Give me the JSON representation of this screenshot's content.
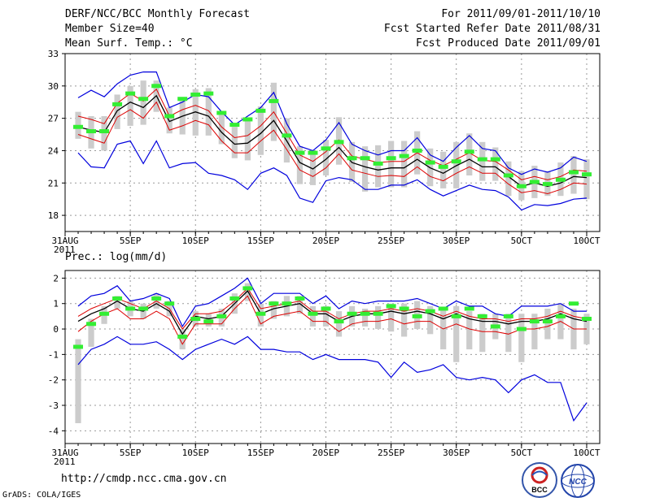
{
  "header": {
    "title": "DERF/NCC/BCC Monthly Forecast",
    "member_size": "Member Size=40",
    "variable": "Mean Surf. Temp.: °C",
    "period": "For 2011/09/01-2011/10/10",
    "started": "Fcst Started Refer Date 2011/08/31",
    "produced": "Fcst Produced Date 2011/09/01"
  },
  "footer": {
    "url": "http://cmdp.ncc.cma.gov.cn",
    "grads": "GrADS: COLA/IGES",
    "logo1_text": "BCC",
    "logo2_text": "NCC"
  },
  "colors": {
    "ensemble_mean": "#000000",
    "inner_band": "#dd0000",
    "outer_band": "#0000dd",
    "observed": "#33ee33",
    "spread_bar": "#cccccc",
    "grid": "#999999"
  },
  "chart_data": [
    {
      "type": "line",
      "title": "Mean Surf. Temp.: °C",
      "x_tick_labels": [
        "31AUG\n2011",
        "5SEP",
        "10SEP",
        "15SEP",
        "20SEP",
        "25SEP",
        "30SEP",
        "5OCT",
        "10OCT"
      ],
      "ylim": [
        16.5,
        33
      ],
      "yticks": [
        18,
        21,
        24,
        27,
        30,
        33
      ],
      "days": [
        1,
        2,
        3,
        4,
        5,
        6,
        7,
        8,
        9,
        10,
        11,
        12,
        13,
        14,
        15,
        16,
        17,
        18,
        19,
        20,
        21,
        22,
        23,
        24,
        25,
        26,
        27,
        28,
        29,
        30,
        31,
        32,
        33,
        34,
        35,
        36,
        37,
        38,
        39,
        40
      ],
      "series": [
        {
          "name": "ensemble mean",
          "values": [
            26.2,
            25.9,
            25.7,
            27.7,
            28.5,
            28.0,
            29.1,
            26.7,
            27.2,
            27.6,
            27.2,
            25.7,
            24.6,
            24.7,
            25.6,
            26.8,
            24.9,
            22.9,
            22.3,
            23.2,
            24.3,
            22.9,
            22.5,
            22.2,
            22.4,
            22.4,
            23.2,
            22.4,
            21.9,
            22.6,
            23.2,
            22.5,
            22.5,
            21.6,
            20.7,
            21.0,
            20.7,
            21.0,
            21.6,
            21.5
          ]
        },
        {
          "name": "upper inner",
          "values": [
            27.2,
            26.9,
            26.5,
            28.4,
            29.3,
            28.6,
            29.7,
            27.2,
            27.8,
            28.2,
            27.7,
            26.2,
            25.2,
            25.4,
            26.3,
            27.6,
            25.6,
            23.6,
            23.0,
            23.9,
            25.0,
            23.5,
            23.2,
            22.9,
            23.0,
            23.0,
            23.8,
            23.1,
            22.6,
            23.2,
            23.8,
            23.1,
            23.0,
            22.2,
            21.3,
            21.6,
            21.3,
            21.6,
            22.2,
            22.1
          ]
        },
        {
          "name": "lower inner",
          "values": [
            25.5,
            25.1,
            24.7,
            27.1,
            27.8,
            27.0,
            28.5,
            25.9,
            26.3,
            26.8,
            26.4,
            24.9,
            23.8,
            23.8,
            24.9,
            25.9,
            24.1,
            22.2,
            21.6,
            22.4,
            23.7,
            22.2,
            21.9,
            21.6,
            21.7,
            21.6,
            22.5,
            21.6,
            21.2,
            21.9,
            22.5,
            21.9,
            21.9,
            20.9,
            20.1,
            20.3,
            20.0,
            20.4,
            21.0,
            20.9
          ]
        },
        {
          "name": "upper outer",
          "values": [
            28.9,
            29.6,
            29.0,
            30.2,
            31.0,
            31.3,
            31.3,
            28.0,
            28.5,
            29.2,
            29.0,
            27.6,
            26.4,
            27.2,
            28.0,
            29.4,
            26.5,
            24.4,
            24.0,
            25.0,
            26.6,
            24.6,
            24.0,
            23.6,
            24.0,
            24.0,
            25.2,
            23.6,
            23.0,
            24.3,
            25.4,
            24.2,
            24.0,
            22.4,
            21.8,
            22.3,
            22.0,
            22.4,
            23.4,
            23.0
          ]
        },
        {
          "name": "lower outer",
          "values": [
            23.8,
            22.5,
            22.4,
            24.6,
            24.9,
            22.8,
            24.9,
            22.4,
            22.8,
            22.9,
            21.9,
            21.7,
            21.3,
            20.4,
            21.9,
            22.4,
            21.7,
            19.6,
            19.2,
            21.2,
            21.5,
            21.3,
            20.4,
            20.4,
            20.8,
            20.8,
            21.3,
            20.4,
            19.8,
            20.3,
            20.8,
            20.4,
            20.3,
            19.7,
            18.5,
            19.0,
            18.9,
            19.1,
            19.5,
            19.6
          ]
        },
        {
          "name": "observed",
          "values": [
            26.2,
            25.8,
            25.8,
            28.3,
            29.3,
            28.8,
            30.0,
            27.2,
            28.8,
            29.2,
            29.3,
            27.5,
            26.4,
            26.9,
            27.7,
            28.6,
            25.4,
            23.8,
            23.8,
            24.2,
            24.8,
            23.3,
            23.3,
            22.8,
            23.3,
            23.5,
            24.0,
            22.9,
            22.5,
            23.0,
            23.9,
            23.2,
            23.2,
            21.7,
            20.7,
            21.1,
            20.9,
            21.3,
            22.0,
            21.8
          ]
        },
        {
          "name": "spread bar max",
          "values": [
            27.6,
            27.2,
            27.2,
            29.2,
            30.0,
            30.5,
            30.5,
            28.0,
            28.6,
            29.7,
            29.8,
            27.3,
            26.2,
            27.0,
            28.1,
            30.3,
            27.0,
            24.4,
            23.9,
            25.0,
            27.1,
            24.8,
            24.4,
            24.5,
            24.9,
            24.9,
            25.8,
            24.2,
            23.9,
            24.8,
            25.6,
            24.8,
            24.3,
            23.0,
            22.1,
            22.6,
            22.1,
            22.9,
            23.5,
            23.2
          ]
        },
        {
          "name": "spread bar min",
          "values": [
            25.1,
            24.2,
            24.0,
            26.0,
            26.3,
            26.4,
            27.6,
            25.6,
            25.5,
            25.4,
            25.4,
            24.6,
            23.3,
            23.1,
            23.6,
            24.9,
            22.9,
            20.9,
            20.8,
            21.7,
            22.7,
            21.1,
            20.2,
            20.6,
            20.6,
            20.6,
            21.8,
            20.7,
            20.5,
            20.5,
            21.7,
            21.2,
            21.2,
            19.8,
            19.4,
            19.6,
            19.8,
            19.8,
            20.0,
            19.5
          ]
        }
      ]
    },
    {
      "type": "line",
      "title": "Prec.: log(mm/d)",
      "x_tick_labels": [
        "31AUG\n2011",
        "5SEP",
        "10SEP",
        "15SEP",
        "20SEP",
        "25SEP",
        "30SEP",
        "5OCT",
        "10OCT"
      ],
      "ylim": [
        -4.5,
        2.3
      ],
      "yticks": [
        -4,
        -3,
        -2,
        -1,
        0,
        1,
        2
      ],
      "days": [
        1,
        2,
        3,
        4,
        5,
        6,
        7,
        8,
        9,
        10,
        11,
        12,
        13,
        14,
        15,
        16,
        17,
        18,
        19,
        20,
        21,
        22,
        23,
        24,
        25,
        26,
        27,
        28,
        29,
        30,
        31,
        32,
        33,
        34,
        35,
        36,
        37,
        38,
        39,
        40
      ],
      "series": [
        {
          "name": "ensemble mean",
          "values": [
            0.3,
            0.6,
            0.8,
            1.1,
            0.8,
            0.7,
            1.0,
            0.7,
            -0.2,
            0.5,
            0.4,
            0.5,
            1.0,
            1.5,
            0.6,
            0.8,
            0.9,
            1.0,
            0.6,
            0.6,
            0.3,
            0.5,
            0.6,
            0.6,
            0.7,
            0.6,
            0.7,
            0.6,
            0.4,
            0.6,
            0.4,
            0.3,
            0.3,
            0.2,
            0.3,
            0.3,
            0.4,
            0.6,
            0.4,
            0.3
          ]
        },
        {
          "name": "upper inner",
          "values": [
            0.5,
            0.8,
            1.0,
            1.2,
            1.0,
            0.8,
            1.1,
            0.8,
            0.0,
            0.6,
            0.6,
            0.7,
            1.1,
            1.6,
            0.8,
            0.9,
            1.0,
            1.1,
            0.7,
            0.7,
            0.4,
            0.6,
            0.7,
            0.7,
            0.8,
            0.7,
            0.8,
            0.7,
            0.5,
            0.7,
            0.5,
            0.4,
            0.4,
            0.3,
            0.4,
            0.4,
            0.5,
            0.7,
            0.5,
            0.4
          ]
        },
        {
          "name": "lower inner",
          "values": [
            -0.1,
            0.3,
            0.6,
            0.8,
            0.4,
            0.4,
            0.7,
            0.4,
            -0.6,
            0.2,
            0.2,
            0.2,
            0.8,
            1.3,
            0.2,
            0.5,
            0.6,
            0.7,
            0.3,
            0.3,
            -0.1,
            0.2,
            0.3,
            0.3,
            0.4,
            0.2,
            0.3,
            0.3,
            0.0,
            0.2,
            0.0,
            -0.1,
            -0.1,
            -0.2,
            0.0,
            0.0,
            0.1,
            0.3,
            0.0,
            0.0
          ]
        },
        {
          "name": "upper outer",
          "values": [
            0.9,
            1.3,
            1.4,
            1.7,
            1.1,
            1.2,
            1.4,
            1.2,
            0.1,
            0.9,
            1.0,
            1.3,
            1.6,
            2.0,
            1.0,
            1.4,
            1.4,
            1.4,
            1.0,
            1.3,
            0.8,
            1.1,
            1.0,
            1.1,
            1.1,
            1.1,
            1.2,
            1.0,
            0.8,
            1.1,
            0.9,
            0.9,
            0.6,
            0.5,
            0.9,
            0.9,
            0.9,
            1.0,
            0.7,
            0.7
          ]
        },
        {
          "name": "lower outer",
          "values": [
            -1.4,
            -0.8,
            -0.6,
            -0.3,
            -0.6,
            -0.6,
            -0.5,
            -0.8,
            -1.2,
            -0.8,
            -0.6,
            -0.4,
            -0.6,
            -0.3,
            -0.8,
            -0.8,
            -0.9,
            -0.9,
            -1.2,
            -1.0,
            -1.2,
            -1.2,
            -1.2,
            -1.3,
            -1.9,
            -1.3,
            -1.7,
            -1.6,
            -1.4,
            -1.9,
            -2.0,
            -1.9,
            -2.0,
            -2.5,
            -2.0,
            -1.8,
            -2.1,
            -2.1,
            -3.6,
            -2.9
          ]
        },
        {
          "name": "observed",
          "values": [
            -0.7,
            0.2,
            0.6,
            1.2,
            0.8,
            0.8,
            1.2,
            1.0,
            -0.3,
            0.4,
            0.3,
            0.5,
            1.2,
            1.6,
            0.6,
            1.0,
            1.0,
            1.2,
            0.6,
            0.8,
            0.3,
            0.6,
            0.6,
            0.6,
            0.9,
            0.8,
            0.5,
            0.7,
            0.8,
            0.5,
            0.8,
            0.5,
            0.1,
            0.5,
            0.0,
            0.3,
            0.3,
            0.5,
            1.0,
            0.4
          ]
        },
        {
          "name": "spread bar max",
          "values": [
            -0.4,
            0.4,
            0.9,
            1.3,
            1.1,
            1.0,
            1.4,
            1.1,
            0.0,
            0.7,
            0.6,
            0.8,
            1.4,
            1.8,
            1.0,
            1.1,
            1.3,
            1.3,
            0.9,
            0.9,
            0.7,
            0.9,
            0.8,
            0.9,
            1.0,
            1.0,
            1.1,
            0.9,
            0.8,
            0.9,
            0.7,
            0.6,
            0.6,
            0.6,
            0.6,
            0.6,
            0.8,
            1.0,
            0.8,
            0.6
          ]
        },
        {
          "name": "spread bar min",
          "values": [
            -3.7,
            -0.7,
            0.2,
            0.8,
            0.5,
            0.4,
            0.8,
            0.5,
            -0.8,
            0.1,
            0.1,
            0.1,
            0.6,
            1.1,
            0.1,
            0.4,
            0.5,
            0.6,
            0.1,
            0.1,
            -0.3,
            0.1,
            0.1,
            0.0,
            -0.1,
            -0.3,
            0.0,
            -0.2,
            -0.8,
            -1.3,
            -0.8,
            -0.9,
            -0.4,
            -0.9,
            -1.3,
            -0.8,
            -0.4,
            -0.4,
            -0.8,
            -0.6
          ]
        }
      ]
    }
  ]
}
